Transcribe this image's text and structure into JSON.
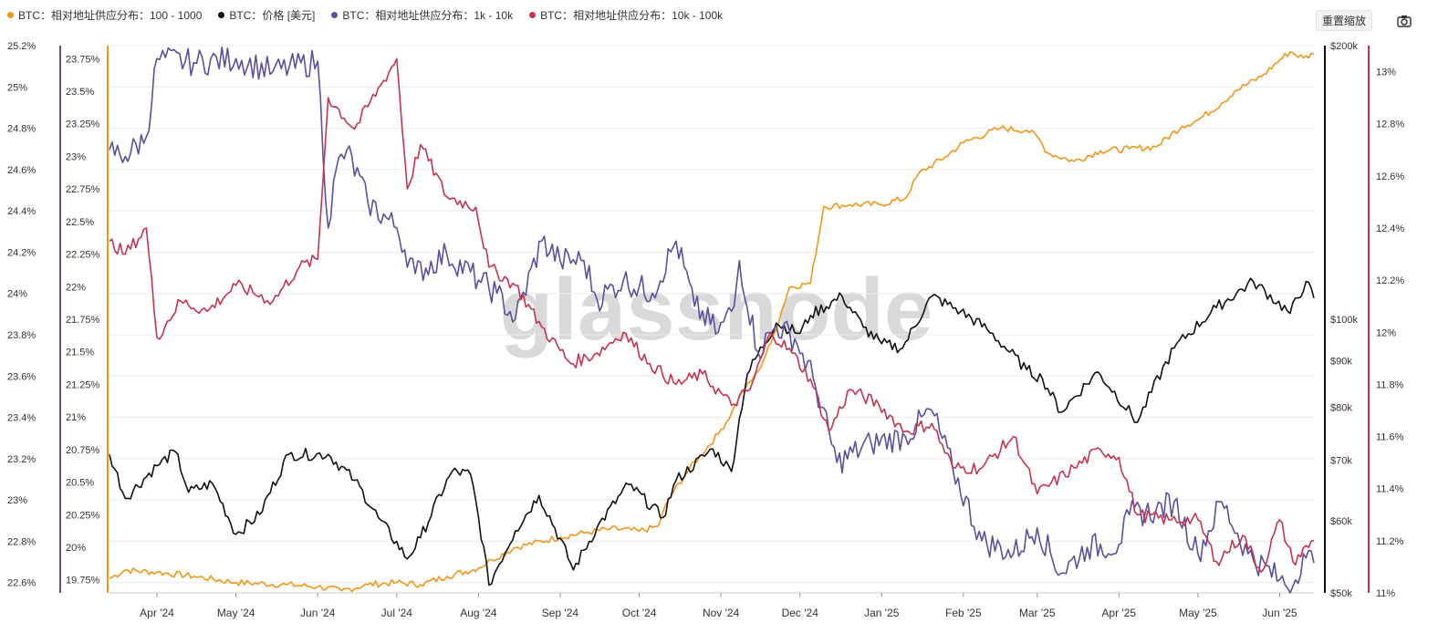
{
  "legend": [
    {
      "label": "BTC：相对地址供应分布：100 - 1000",
      "color": "#f0961b"
    },
    {
      "label": "BTC：价格 [美元]",
      "color": "#111111"
    },
    {
      "label": "BTC：相对地址供应分布：1k - 10k",
      "color": "#5b4fa0"
    },
    {
      "label": "BTC：相对地址供应分布：10k - 100k",
      "color": "#c5344f"
    }
  ],
  "toolbar": {
    "reset_label": "重置缩放",
    "camera_icon": "camera-icon"
  },
  "watermark": "glassnode",
  "chart_data": {
    "type": "line",
    "x_range": [
      "2024-03-14",
      "2025-06-14"
    ],
    "x_ticks": [
      "Apr '24",
      "May '24",
      "Jun '24",
      "Jul '24",
      "Aug '24",
      "Sep '24",
      "Oct '24",
      "Nov '24",
      "Dec '24",
      "Jan '25",
      "Feb '25",
      "Mar '25",
      "Apr '25",
      "May '25",
      "Jun '25"
    ],
    "axes": {
      "orange": {
        "side": "left",
        "range": [
          22.55,
          25.2
        ],
        "ticks": [
          "25.2%",
          "25%",
          "24.8%",
          "24.6%",
          "24.4%",
          "24.2%",
          "24%",
          "23.8%",
          "23.6%",
          "23.4%",
          "23.2%",
          "23%",
          "22.8%",
          "22.6%"
        ],
        "tick_values": [
          25.2,
          25.0,
          24.8,
          24.6,
          24.4,
          24.2,
          24.0,
          23.8,
          23.6,
          23.4,
          23.2,
          23.0,
          22.8,
          22.6
        ]
      },
      "purple": {
        "side": "left",
        "range": [
          19.65,
          23.85
        ],
        "ticks": [
          "23.75%",
          "23.5%",
          "23.25%",
          "23%",
          "22.75%",
          "22.5%",
          "22.25%",
          "22%",
          "21.75%",
          "21.5%",
          "21.25%",
          "21%",
          "20.75%",
          "20.5%",
          "20.25%",
          "20%",
          "19.75%"
        ],
        "tick_values": [
          23.75,
          23.5,
          23.25,
          23.0,
          22.75,
          22.5,
          22.25,
          22.0,
          21.75,
          21.5,
          21.25,
          21.0,
          20.75,
          20.5,
          20.25,
          20.0,
          19.75
        ]
      },
      "price": {
        "side": "right",
        "scale": "log",
        "range": [
          50000,
          200000
        ],
        "ticks": [
          "$200k",
          "$100k",
          "$90k",
          "$80k",
          "$70k",
          "$60k",
          "$50k"
        ],
        "tick_values": [
          200000,
          100000,
          90000,
          80000,
          70000,
          60000,
          50000
        ]
      },
      "red": {
        "side": "right",
        "range": [
          11.0,
          13.1
        ],
        "ticks": [
          "13%",
          "12.8%",
          "12.6%",
          "12.4%",
          "12.2%",
          "12%",
          "11.8%",
          "11.6%",
          "11.4%",
          "11.2%",
          "11%"
        ],
        "tick_values": [
          13.0,
          12.8,
          12.6,
          12.4,
          12.2,
          12.0,
          11.8,
          11.6,
          11.4,
          11.2,
          11.0
        ]
      }
    },
    "series": [
      {
        "name": "BTC：相对地址供应分布：100 - 1000",
        "axis": "orange",
        "color": "#f0961b",
        "points": [
          [
            "2024-03-14",
            22.62
          ],
          [
            "2024-03-20",
            22.66
          ],
          [
            "2024-04-01",
            22.65
          ],
          [
            "2024-04-15",
            22.63
          ],
          [
            "2024-05-01",
            22.6
          ],
          [
            "2024-05-20",
            22.59
          ],
          [
            "2024-06-01",
            22.58
          ],
          [
            "2024-06-10",
            22.56
          ],
          [
            "2024-06-20",
            22.59
          ],
          [
            "2024-07-01",
            22.6
          ],
          [
            "2024-07-10",
            22.59
          ],
          [
            "2024-07-20",
            22.63
          ],
          [
            "2024-08-01",
            22.67
          ],
          [
            "2024-08-06",
            22.71
          ],
          [
            "2024-08-15",
            22.77
          ],
          [
            "2024-09-01",
            22.82
          ],
          [
            "2024-09-10",
            22.84
          ],
          [
            "2024-09-20",
            22.86
          ],
          [
            "2024-10-01",
            22.85
          ],
          [
            "2024-10-08",
            22.87
          ],
          [
            "2024-10-12",
            23.0
          ],
          [
            "2024-10-20",
            23.15
          ],
          [
            "2024-10-31",
            23.32
          ],
          [
            "2024-11-05",
            23.42
          ],
          [
            "2024-11-08",
            23.5
          ],
          [
            "2024-11-15",
            23.62
          ],
          [
            "2024-11-20",
            23.76
          ],
          [
            "2024-11-27",
            24.03
          ],
          [
            "2024-12-05",
            24.05
          ],
          [
            "2024-12-10",
            24.42
          ],
          [
            "2024-12-20",
            24.43
          ],
          [
            "2024-12-31",
            24.43
          ],
          [
            "2025-01-10",
            24.46
          ],
          [
            "2025-01-15",
            24.58
          ],
          [
            "2025-01-25",
            24.66
          ],
          [
            "2025-02-01",
            24.73
          ],
          [
            "2025-02-15",
            24.8
          ],
          [
            "2025-02-25",
            24.79
          ],
          [
            "2025-03-01",
            24.76
          ],
          [
            "2025-03-05",
            24.68
          ],
          [
            "2025-03-15",
            24.64
          ],
          [
            "2025-03-25",
            24.69
          ],
          [
            "2025-04-05",
            24.7
          ],
          [
            "2025-04-15",
            24.71
          ],
          [
            "2025-04-25",
            24.81
          ],
          [
            "2025-05-01",
            24.84
          ],
          [
            "2025-05-10",
            24.92
          ],
          [
            "2025-05-15",
            24.98
          ],
          [
            "2025-05-25",
            25.05
          ],
          [
            "2025-06-01",
            25.13
          ],
          [
            "2025-06-05",
            25.17
          ],
          [
            "2025-06-10",
            25.14
          ],
          [
            "2025-06-14",
            25.16
          ]
        ]
      },
      {
        "name": "BTC：价格 [美元]",
        "axis": "price",
        "color": "#111111",
        "points": [
          [
            "2024-03-14",
            71000
          ],
          [
            "2024-03-20",
            63500
          ],
          [
            "2024-04-01",
            69000
          ],
          [
            "2024-04-08",
            71500
          ],
          [
            "2024-04-13",
            64500
          ],
          [
            "2024-04-22",
            66000
          ],
          [
            "2024-05-01",
            58000
          ],
          [
            "2024-05-10",
            61000
          ],
          [
            "2024-05-21",
            71000
          ],
          [
            "2024-06-05",
            71000
          ],
          [
            "2024-06-15",
            66500
          ],
          [
            "2024-06-24",
            60500
          ],
          [
            "2024-07-05",
            54500
          ],
          [
            "2024-07-10",
            57500
          ],
          [
            "2024-07-22",
            68000
          ],
          [
            "2024-07-29",
            67500
          ],
          [
            "2024-08-05",
            51000
          ],
          [
            "2024-08-15",
            58500
          ],
          [
            "2024-08-24",
            64000
          ],
          [
            "2024-09-06",
            53000
          ],
          [
            "2024-09-15",
            59000
          ],
          [
            "2024-09-27",
            65800
          ],
          [
            "2024-10-10",
            60500
          ],
          [
            "2024-10-15",
            66500
          ],
          [
            "2024-10-29",
            72000
          ],
          [
            "2024-11-05",
            68000
          ],
          [
            "2024-11-11",
            87000
          ],
          [
            "2024-11-22",
            99000
          ],
          [
            "2024-12-01",
            96500
          ],
          [
            "2024-12-05",
            101000
          ],
          [
            "2024-12-17",
            106000
          ],
          [
            "2024-12-25",
            98000
          ],
          [
            "2025-01-01",
            94000
          ],
          [
            "2025-01-09",
            93000
          ],
          [
            "2025-01-20",
            106000
          ],
          [
            "2025-01-31",
            102000
          ],
          [
            "2025-02-10",
            97500
          ],
          [
            "2025-02-25",
            88000
          ],
          [
            "2025-03-03",
            86000
          ],
          [
            "2025-03-10",
            79000
          ],
          [
            "2025-03-24",
            87500
          ],
          [
            "2025-04-08",
            77000
          ],
          [
            "2025-04-22",
            93000
          ],
          [
            "2025-05-08",
            103000
          ],
          [
            "2025-05-22",
            110000
          ],
          [
            "2025-06-05",
            101500
          ],
          [
            "2025-06-11",
            110000
          ],
          [
            "2025-06-14",
            105500
          ]
        ]
      },
      {
        "name": "BTC：相对地址供应分布：1k - 10k",
        "axis": "purple",
        "color": "#5b4fa0",
        "points": [
          [
            "2024-03-14",
            23.05
          ],
          [
            "2024-03-20",
            23.0
          ],
          [
            "2024-03-28",
            23.15
          ],
          [
            "2024-04-01",
            23.75
          ],
          [
            "2024-04-15",
            23.72
          ],
          [
            "2024-05-01",
            23.75
          ],
          [
            "2024-05-15",
            23.65
          ],
          [
            "2024-06-01",
            23.73
          ],
          [
            "2024-06-05",
            22.45
          ],
          [
            "2024-06-08",
            22.9
          ],
          [
            "2024-06-12",
            23.05
          ],
          [
            "2024-06-20",
            22.65
          ],
          [
            "2024-07-01",
            22.45
          ],
          [
            "2024-07-08",
            22.1
          ],
          [
            "2024-07-20",
            22.25
          ],
          [
            "2024-08-01",
            22.05
          ],
          [
            "2024-08-08",
            21.95
          ],
          [
            "2024-08-15",
            21.75
          ],
          [
            "2024-08-25",
            22.35
          ],
          [
            "2024-09-01",
            22.2
          ],
          [
            "2024-09-10",
            22.2
          ],
          [
            "2024-09-15",
            21.9
          ],
          [
            "2024-09-25",
            22.05
          ],
          [
            "2024-10-06",
            21.95
          ],
          [
            "2024-10-15",
            22.35
          ],
          [
            "2024-10-22",
            21.85
          ],
          [
            "2024-10-31",
            21.65
          ],
          [
            "2024-11-06",
            21.85
          ],
          [
            "2024-11-08",
            22.2
          ],
          [
            "2024-11-15",
            21.5
          ],
          [
            "2024-11-22",
            21.7
          ],
          [
            "2024-11-29",
            21.6
          ],
          [
            "2024-12-06",
            21.3
          ],
          [
            "2024-12-15",
            20.65
          ],
          [
            "2024-12-28",
            20.8
          ],
          [
            "2025-01-10",
            20.85
          ],
          [
            "2025-01-20",
            21.05
          ],
          [
            "2025-01-28",
            20.6
          ],
          [
            "2025-02-08",
            20.05
          ],
          [
            "2025-02-20",
            19.95
          ],
          [
            "2025-03-01",
            20.15
          ],
          [
            "2025-03-10",
            19.8
          ],
          [
            "2025-03-20",
            20.0
          ],
          [
            "2025-04-01",
            20.02
          ],
          [
            "2025-04-05",
            20.25
          ],
          [
            "2025-04-15",
            20.28
          ],
          [
            "2025-04-22",
            20.35
          ],
          [
            "2025-05-01",
            19.95
          ],
          [
            "2025-05-10",
            20.35
          ],
          [
            "2025-05-20",
            19.95
          ],
          [
            "2025-06-01",
            19.75
          ],
          [
            "2025-06-06",
            19.7
          ],
          [
            "2025-06-10",
            19.95
          ],
          [
            "2025-06-14",
            19.88
          ]
        ]
      },
      {
        "name": "BTC：相对地址供应分布：10k - 100k",
        "axis": "red",
        "color": "#c5344f",
        "points": [
          [
            "2024-03-14",
            12.35
          ],
          [
            "2024-03-20",
            12.3
          ],
          [
            "2024-03-28",
            12.4
          ],
          [
            "2024-04-01",
            11.98
          ],
          [
            "2024-04-10",
            12.12
          ],
          [
            "2024-04-20",
            12.08
          ],
          [
            "2024-05-01",
            12.18
          ],
          [
            "2024-05-15",
            12.12
          ],
          [
            "2024-05-25",
            12.25
          ],
          [
            "2024-06-01",
            12.28
          ],
          [
            "2024-06-05",
            12.9
          ],
          [
            "2024-06-15",
            12.78
          ],
          [
            "2024-06-25",
            12.95
          ],
          [
            "2024-07-01",
            13.05
          ],
          [
            "2024-07-05",
            12.55
          ],
          [
            "2024-07-10",
            12.72
          ],
          [
            "2024-07-20",
            12.52
          ],
          [
            "2024-07-31",
            12.48
          ],
          [
            "2024-08-05",
            12.25
          ],
          [
            "2024-08-15",
            12.18
          ],
          [
            "2024-08-25",
            12.02
          ],
          [
            "2024-09-05",
            11.88
          ],
          [
            "2024-09-15",
            11.92
          ],
          [
            "2024-09-25",
            12.0
          ],
          [
            "2024-10-05",
            11.88
          ],
          [
            "2024-10-15",
            11.8
          ],
          [
            "2024-10-25",
            11.84
          ],
          [
            "2024-11-05",
            11.72
          ],
          [
            "2024-11-12",
            11.78
          ],
          [
            "2024-11-20",
            12.0
          ],
          [
            "2024-11-28",
            11.92
          ],
          [
            "2024-12-05",
            11.82
          ],
          [
            "2024-12-12",
            11.62
          ],
          [
            "2024-12-20",
            11.78
          ],
          [
            "2024-12-31",
            11.72
          ],
          [
            "2025-01-10",
            11.62
          ],
          [
            "2025-01-20",
            11.65
          ],
          [
            "2025-01-28",
            11.48
          ],
          [
            "2025-02-08",
            11.48
          ],
          [
            "2025-02-20",
            11.6
          ],
          [
            "2025-03-01",
            11.38
          ],
          [
            "2025-03-15",
            11.48
          ],
          [
            "2025-03-25",
            11.55
          ],
          [
            "2025-04-01",
            11.52
          ],
          [
            "2025-04-08",
            11.3
          ],
          [
            "2025-04-20",
            11.28
          ],
          [
            "2025-05-01",
            11.28
          ],
          [
            "2025-05-08",
            11.12
          ],
          [
            "2025-05-18",
            11.22
          ],
          [
            "2025-05-25",
            11.08
          ],
          [
            "2025-06-01",
            11.28
          ],
          [
            "2025-06-06",
            11.12
          ],
          [
            "2025-06-14",
            11.2
          ]
        ]
      }
    ]
  }
}
